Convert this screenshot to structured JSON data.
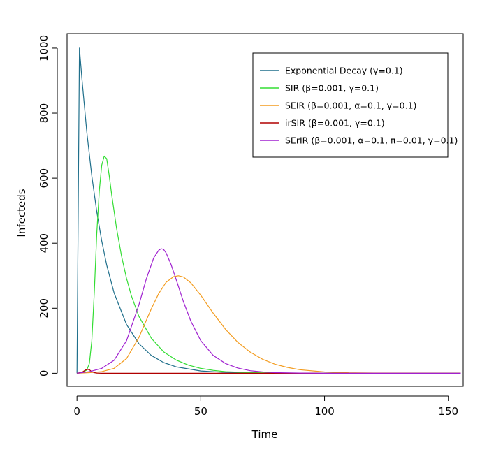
{
  "chart_data": {
    "type": "line",
    "xlabel": "Time",
    "ylabel": "Infecteds",
    "xlim": [
      -4,
      156
    ],
    "ylim": [
      -40,
      1045
    ],
    "x_ticks": [
      0,
      50,
      100,
      150
    ],
    "y_ticks": [
      0,
      200,
      400,
      600,
      800,
      1000
    ],
    "legend_position": "top-right",
    "grid": false,
    "series": [
      {
        "name": "Exponential Decay (γ=0.1)",
        "color": "#1f6f8b",
        "x": [
          0,
          1,
          2,
          4,
          6,
          8,
          10,
          12,
          15,
          20,
          25,
          30,
          35,
          40,
          50,
          60,
          70,
          80,
          100,
          120,
          155
        ],
        "y": [
          0,
          1000,
          905,
          741,
          607,
          497,
          407,
          333,
          247,
          150,
          91,
          55,
          33,
          20,
          7,
          2.5,
          1,
          0.3,
          0,
          0,
          0
        ]
      },
      {
        "name": "SIR (β=0.001, γ=0.1)",
        "color": "#33dd33",
        "x": [
          0,
          2,
          4,
          5,
          6,
          7,
          8,
          9,
          10,
          11,
          12,
          13,
          14,
          16,
          18,
          20,
          22,
          25,
          30,
          35,
          40,
          45,
          50,
          55,
          60,
          70,
          80,
          100,
          155
        ],
        "y": [
          0,
          2,
          10,
          30,
          100,
          250,
          430,
          560,
          640,
          668,
          660,
          610,
          550,
          445,
          360,
          292,
          238,
          175,
          108,
          66,
          41,
          25,
          15,
          9,
          5,
          2,
          0.5,
          0,
          0
        ]
      },
      {
        "name": "SEIR (β=0.001, α=0.1, γ=0.1)",
        "color": "#f39c1f",
        "x": [
          0,
          5,
          10,
          15,
          20,
          25,
          30,
          33,
          36,
          39,
          41,
          43,
          46,
          50,
          55,
          60,
          65,
          70,
          75,
          80,
          85,
          90,
          100,
          110,
          120,
          155
        ],
        "y": [
          0,
          2,
          5,
          15,
          45,
          110,
          198,
          245,
          280,
          297,
          300,
          296,
          278,
          240,
          185,
          135,
          95,
          65,
          43,
          28,
          18,
          11,
          4,
          1.5,
          0.5,
          0
        ]
      },
      {
        "name": "irSIR (β=0.001, γ=0.1)",
        "color": "#b00000",
        "x": [
          0,
          2,
          3,
          4,
          5,
          6,
          7,
          8,
          10,
          155
        ],
        "y": [
          0,
          3,
          8,
          12,
          11,
          5,
          2,
          0.5,
          0,
          0
        ]
      },
      {
        "name": "SErIR (β=0.001, α=0.1, π=0.01, γ=0.1)",
        "color": "#a020d0",
        "x": [
          0,
          5,
          10,
          15,
          20,
          25,
          28,
          31,
          33,
          34,
          35,
          36,
          38,
          40,
          43,
          46,
          50,
          55,
          60,
          65,
          70,
          75,
          80,
          90,
          100,
          155
        ],
        "y": [
          0,
          5,
          15,
          40,
          100,
          210,
          290,
          355,
          378,
          383,
          381,
          370,
          335,
          290,
          220,
          160,
          100,
          55,
          30,
          16,
          8,
          4,
          2,
          0.5,
          0,
          0
        ]
      }
    ]
  }
}
